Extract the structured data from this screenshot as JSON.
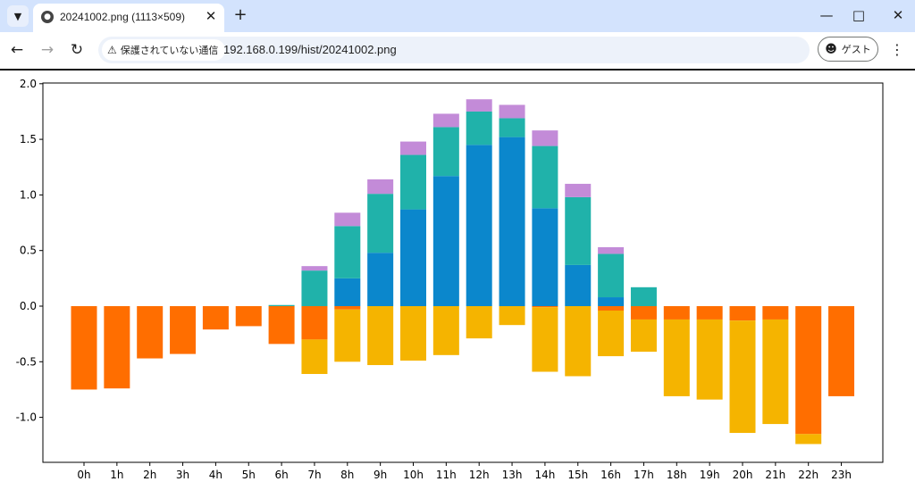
{
  "browser": {
    "tab_title": "20241002.png (1113×509)",
    "security_label": "保護されていない通信",
    "url": "192.168.0.199/hist/20241002.png",
    "profile_label": "ゲスト",
    "icons": [
      "chevron-down-icon",
      "globe-icon",
      "close-icon",
      "plus-icon",
      "minimize-icon",
      "maximize-icon",
      "back-icon",
      "forward-icon",
      "reload-icon",
      "warning-icon",
      "profile-icon",
      "more-icon"
    ]
  },
  "chart_data": {
    "type": "bar",
    "stacked": true,
    "title": "",
    "xlabel": "",
    "ylabel": "",
    "ylim": [
      -1.4,
      2.0
    ],
    "yticks": [
      "2.0",
      "1.5",
      "1.0",
      "0.5",
      "0.0",
      "-0.5",
      "-1.0"
    ],
    "ytick_values": [
      2.0,
      1.5,
      1.0,
      0.5,
      0.0,
      -0.5,
      -1.0
    ],
    "categories": [
      "0h",
      "1h",
      "2h",
      "3h",
      "4h",
      "5h",
      "6h",
      "7h",
      "8h",
      "9h",
      "10h",
      "11h",
      "12h",
      "13h",
      "14h",
      "15h",
      "16h",
      "17h",
      "18h",
      "19h",
      "20h",
      "21h",
      "22h",
      "23h"
    ],
    "positive_series": [
      {
        "name": "blue",
        "color": "#0b87cc",
        "values": [
          0,
          0,
          0,
          0,
          0,
          0,
          0,
          0,
          0.25,
          0.48,
          0.87,
          1.17,
          1.45,
          1.52,
          0.88,
          0.37,
          0.08,
          0,
          0,
          0,
          0,
          0,
          0,
          0
        ]
      },
      {
        "name": "teal",
        "color": "#20b2aa",
        "values": [
          0,
          0,
          0,
          0,
          0,
          0,
          0.01,
          0.32,
          0.47,
          0.53,
          0.49,
          0.44,
          0.3,
          0.17,
          0.56,
          0.61,
          0.39,
          0.17,
          0,
          0,
          0,
          0,
          0,
          0
        ]
      },
      {
        "name": "purple",
        "color": "#c38bd8",
        "values": [
          0,
          0,
          0,
          0,
          0,
          0,
          0,
          0.04,
          0.12,
          0.13,
          0.12,
          0.12,
          0.11,
          0.12,
          0.14,
          0.12,
          0.06,
          0,
          0,
          0,
          0,
          0,
          0,
          0
        ]
      }
    ],
    "negative_series": [
      {
        "name": "orange",
        "color": "#ff6e00",
        "values": [
          -0.75,
          -0.74,
          -0.47,
          -0.43,
          -0.21,
          -0.18,
          -0.34,
          -0.3,
          -0.03,
          0,
          0,
          0,
          0,
          0,
          -0.01,
          0,
          -0.04,
          -0.12,
          -0.12,
          -0.12,
          -0.13,
          -0.12,
          -1.15,
          -0.81
        ]
      },
      {
        "name": "yellow",
        "color": "#f5b400",
        "values": [
          0,
          0,
          0,
          0,
          0,
          0,
          0,
          -0.31,
          -0.47,
          -0.53,
          -0.49,
          -0.44,
          -0.29,
          -0.17,
          -0.58,
          -0.63,
          -0.41,
          -0.29,
          -0.69,
          -0.72,
          -1.01,
          -0.94,
          -0.09,
          0
        ]
      }
    ]
  }
}
